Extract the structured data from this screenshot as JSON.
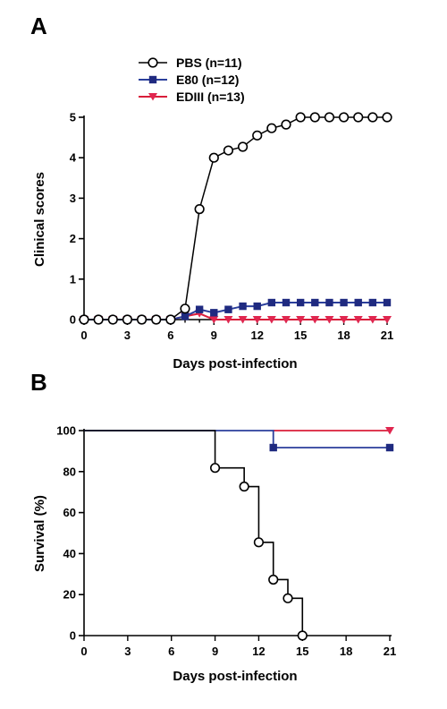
{
  "colors": {
    "pbs": "#000000",
    "e80": "#1f2a80",
    "ediii": "#e0264f",
    "e80_line": "#2b3f9c",
    "ediii_line": "#d91e3a"
  },
  "chart_data": [
    {
      "panel": "A",
      "type": "line",
      "xlabel": "Days post-infection",
      "ylabel": "Clinical scores",
      "xlim": [
        0,
        21
      ],
      "ylim": [
        0,
        5
      ],
      "xticks": [
        0,
        3,
        6,
        9,
        12,
        15,
        18,
        21
      ],
      "yticks": [
        0,
        1,
        2,
        3,
        4,
        5
      ],
      "grid": false,
      "legend_position": "top-center",
      "x": [
        0,
        1,
        2,
        3,
        4,
        5,
        6,
        7,
        8,
        9,
        10,
        11,
        12,
        13,
        14,
        15,
        16,
        17,
        18,
        19,
        20,
        21
      ],
      "series": [
        {
          "name": "PBS (n=11)",
          "marker": "open-circle",
          "values": [
            0,
            0,
            0,
            0,
            0,
            0,
            0,
            0.27,
            2.73,
            4.0,
            4.18,
            4.27,
            4.55,
            4.73,
            4.82,
            5,
            5,
            5,
            5,
            5,
            5,
            5
          ]
        },
        {
          "name": "E80  (n=12)",
          "marker": "filled-square",
          "values": [
            0,
            0,
            0,
            0,
            0,
            0,
            0,
            0.08,
            0.25,
            0.17,
            0.25,
            0.33,
            0.33,
            0.42,
            0.42,
            0.42,
            0.42,
            0.42,
            0.42,
            0.42,
            0.42,
            0.42
          ]
        },
        {
          "name": "EDIII (n=13)",
          "marker": "down-triangle",
          "values": [
            0,
            0,
            0,
            0,
            0,
            0,
            0,
            0.08,
            0.15,
            0,
            0,
            0,
            0,
            0,
            0,
            0,
            0,
            0,
            0,
            0,
            0,
            0
          ]
        }
      ]
    },
    {
      "panel": "B",
      "type": "line",
      "xlabel": "Days post-infection",
      "ylabel": "Survival (%)",
      "xlim": [
        0,
        21
      ],
      "ylim": [
        0,
        100
      ],
      "xticks": [
        0,
        3,
        6,
        9,
        12,
        15,
        18,
        21
      ],
      "yticks": [
        0,
        20,
        40,
        60,
        80,
        100
      ],
      "grid": false,
      "series": [
        {
          "name": "PBS (n=11)",
          "marker": "open-circle",
          "x": [
            0,
            9,
            11,
            12,
            13,
            14,
            15
          ],
          "values": [
            100,
            81.8,
            72.7,
            45.5,
            27.3,
            18.2,
            0
          ],
          "end_x": 15
        },
        {
          "name": "E80  (n=12)",
          "marker": "filled-square",
          "x": [
            0,
            13,
            21
          ],
          "values": [
            100,
            91.7,
            91.7
          ],
          "end_x": 21
        },
        {
          "name": "EDIII (n=13)",
          "marker": "down-triangle",
          "x": [
            0,
            21
          ],
          "values": [
            100,
            100
          ],
          "end_x": 21
        }
      ]
    }
  ]
}
